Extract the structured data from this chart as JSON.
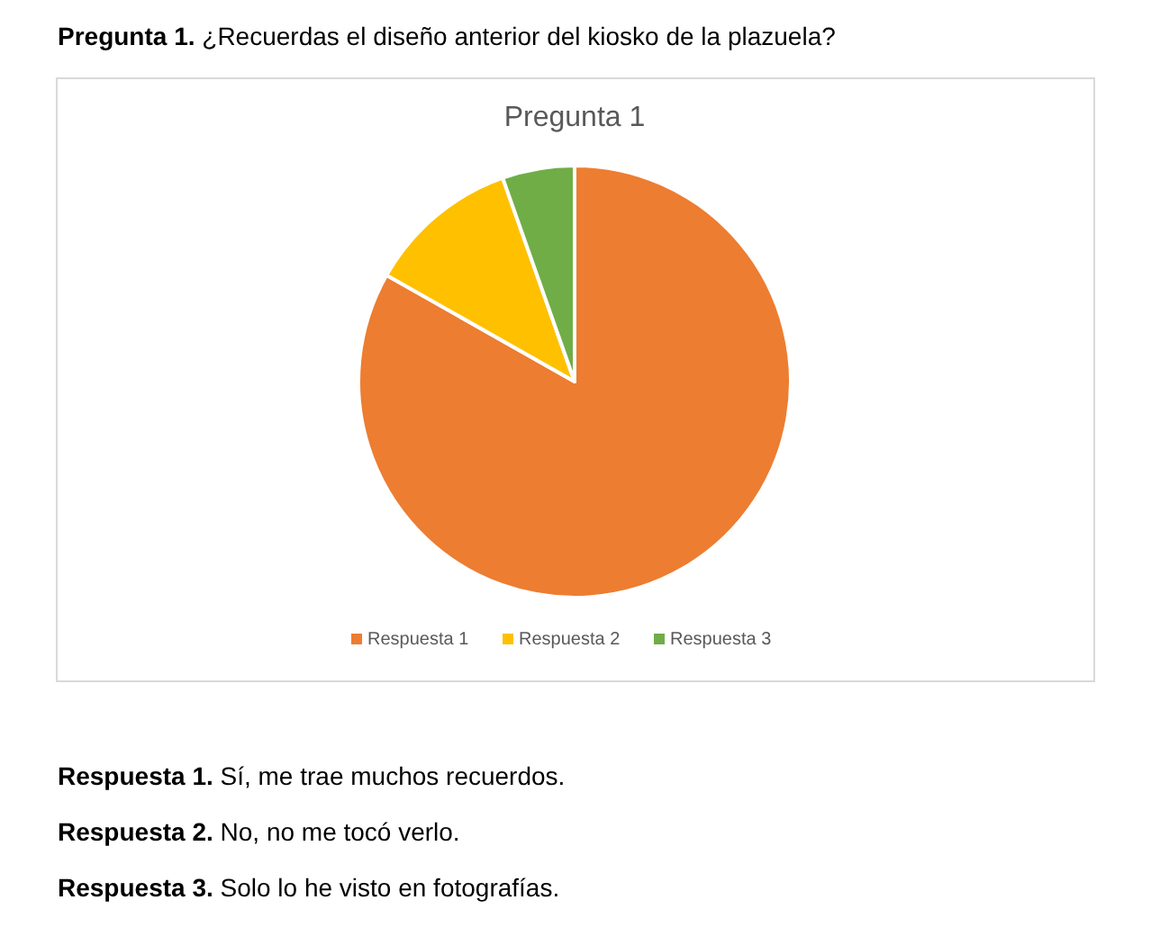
{
  "chart_data": {
    "type": "pie",
    "title": "Pregunta 1",
    "categories": [
      "Respuesta 1",
      "Respuesta 2",
      "Respuesta 3"
    ],
    "values": [
      83.2,
      11.4,
      5.4
    ],
    "colors": [
      "#ed7d31",
      "#ffc000",
      "#70ad47"
    ],
    "legend": "bottom",
    "annotations": [
      "Pregunta 1. ¿Recuerdas el diseño anterior del kiosko de la plazuela?",
      "Respuesta 1. Sí, me trae muchos recuerdos.",
      "Respuesta 2. No, no me tocó verlo.",
      "Respuesta 3. Solo lo he visto en fotografías."
    ]
  }
}
